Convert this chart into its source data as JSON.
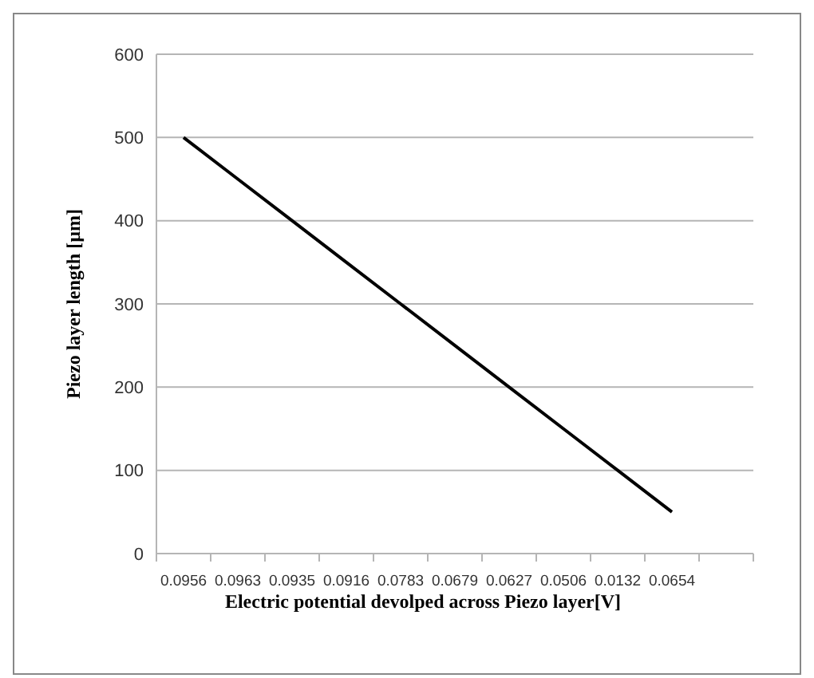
{
  "chart_data": {
    "type": "line",
    "xlabel": "Electric potential devolped across Piezo layer[V]",
    "ylabel": "Piezo layer length [µm]",
    "categories": [
      "0.0956",
      "0.0963",
      "0.0935",
      "0.0916",
      "0.0783",
      "0.0679",
      "0.0627",
      "0.0506",
      "0.0132",
      "0.0654",
      null
    ],
    "series": [
      {
        "color": "#000000",
        "values": [
          500,
          450,
          400,
          350,
          300,
          250,
          200,
          150,
          100,
          50,
          null
        ]
      }
    ],
    "ylim": [
      0,
      600
    ],
    "yticks": [
      0,
      100,
      200,
      300,
      400,
      500,
      600
    ],
    "grid": "y",
    "marker": "none",
    "line_style": "solid"
  }
}
